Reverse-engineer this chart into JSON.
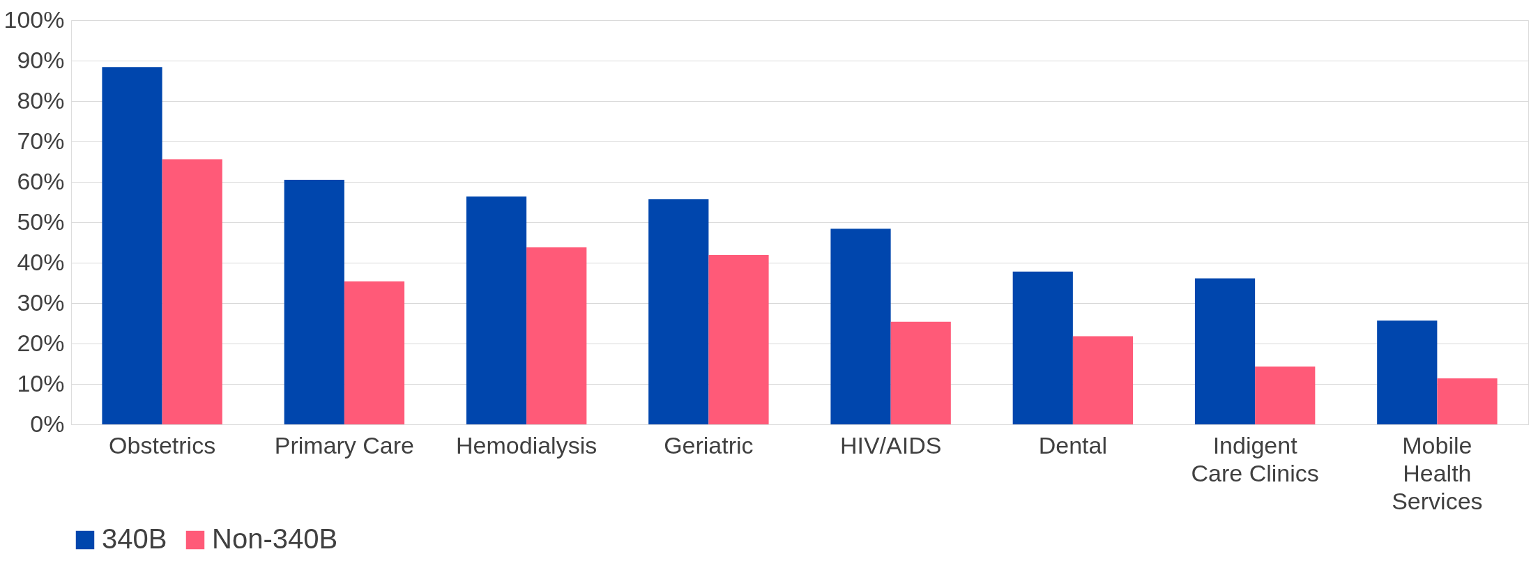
{
  "chart_data": {
    "type": "bar",
    "categories": [
      "Obstetrics",
      "Primary Care",
      "Hemodialysis",
      "Geriatric",
      "HIV/AIDS",
      "Dental",
      "Indigent Care Clinics",
      "Mobile Health Services"
    ],
    "series": [
      {
        "name": "340B",
        "color": "#0046ad",
        "values": [
          88.4,
          60.5,
          56.4,
          55.7,
          48.4,
          37.8,
          36.1,
          25.7
        ]
      },
      {
        "name": "Non-340B",
        "color": "#ff5a78",
        "values": [
          65.6,
          35.4,
          43.8,
          41.9,
          25.4,
          21.8,
          14.3,
          11.4
        ]
      }
    ],
    "ylim": [
      0,
      100
    ],
    "yticks": [
      {
        "value": 0,
        "label": "0%"
      },
      {
        "value": 10,
        "label": "10%"
      },
      {
        "value": 20,
        "label": "20%"
      },
      {
        "value": 30,
        "label": "30%"
      },
      {
        "value": 40,
        "label": "40%"
      },
      {
        "value": 50,
        "label": "50%"
      },
      {
        "value": 60,
        "label": "60%"
      },
      {
        "value": 70,
        "label": "70%"
      },
      {
        "value": 80,
        "label": "80%"
      },
      {
        "value": 90,
        "label": "90%"
      },
      {
        "value": 100,
        "label": "100%"
      }
    ],
    "grid": "y",
    "legend": "bottom"
  }
}
